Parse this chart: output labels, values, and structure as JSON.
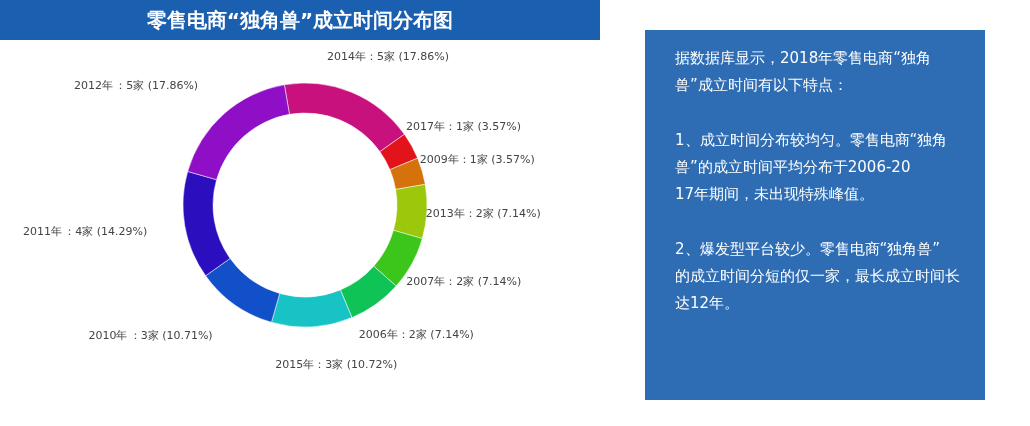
{
  "chart_data": {
    "type": "donut",
    "title": "零售电商“独角兽”成立时间分布图",
    "categories": [
      "2014年",
      "2017年",
      "2009年",
      "2013年",
      "2007年",
      "2006年",
      "2015年",
      "2010年",
      "2011年",
      "2012年"
    ],
    "values": [
      17.86,
      3.57,
      3.57,
      7.14,
      7.14,
      7.14,
      10.72,
      10.71,
      14.29,
      17.86
    ],
    "value_labels": [
      "：5家 (17.86%)",
      "：1家 (3.57%)",
      "：1家 (3.57%)",
      "：2家 (7.14%)",
      "：2家 (7.14%)",
      "：2家 (7.14%)",
      "：3家 (10.72%)",
      "：3家 (10.71%)",
      "：4家 (14.29%)",
      "：5家 (17.86%)"
    ],
    "colors": [
      "#c8117c",
      "#e3131b",
      "#d5720c",
      "#9cc70b",
      "#3cc61c",
      "#10c357",
      "#17c3c5",
      "#1250c9",
      "#2b0fbf",
      "#8f0fc6"
    ],
    "legend": false,
    "annotations": [
      "据数据库显示，2018年零售电商“独角兽”成立时间有以下特点：",
      "1、成立时间分布较均匀。零售电商“独角兽”的成立时间平均分布于2006-2017年期间，未出现特殊峰值。",
      "2、爆发型平台较少。零售电商“独角兽”的成立时间分短的仅一家，最长成立时间长达12年。"
    ]
  }
}
